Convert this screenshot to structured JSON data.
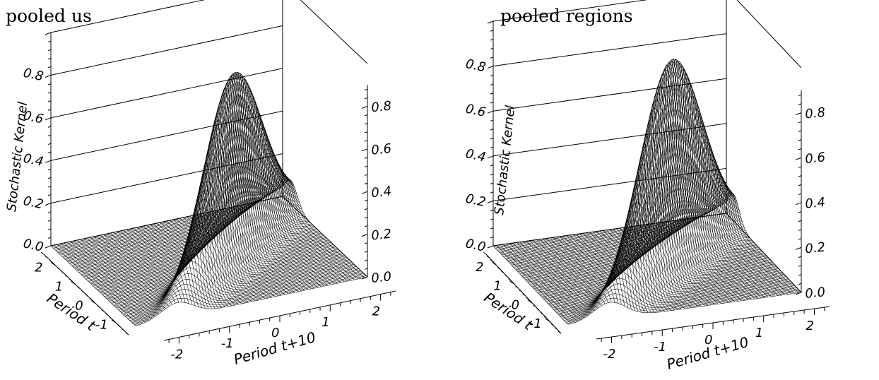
{
  "chart_data": [
    {
      "type": "surface",
      "title": "pooled us",
      "zlabel": "Stochastic Kernel",
      "xlabel": "Period t+10",
      "ylabel": "Period t",
      "x_ticks": [
        "-2",
        "-1",
        "0",
        "1",
        "2"
      ],
      "y_ticks": [
        "-1",
        "0",
        "1",
        "2"
      ],
      "z_ticks_left": [
        "0.0",
        "0.2",
        "0.4",
        "0.6",
        "0.8"
      ],
      "z_ticks_right": [
        "0.0",
        "0.2",
        "0.4",
        "0.6",
        "0.8"
      ],
      "xlim": [
        -2.3,
        2.3
      ],
      "ylim": [
        -1.6,
        2.6
      ],
      "zlim": [
        0,
        1.0
      ],
      "peak_height": 0.86,
      "ridge": "x = y"
    },
    {
      "type": "surface",
      "title": "pooled regions",
      "zlabel": "Stochastic Kernel",
      "xlabel": "Period t+10",
      "ylabel": "Period t",
      "x_ticks": [
        "-2",
        "-1",
        "0",
        "1",
        "2"
      ],
      "y_ticks": [
        "-1",
        "0",
        "1",
        "2"
      ],
      "z_ticks_left": [
        "0.0",
        "0.2",
        "0.4",
        "0.6",
        "0.8"
      ],
      "z_ticks_right": [
        "0.0",
        "0.2",
        "0.4",
        "0.6",
        "0.8"
      ],
      "xlim": [
        -2.3,
        2.3
      ],
      "ylim": [
        -1.6,
        2.6
      ],
      "zlim": [
        0,
        1.0
      ],
      "peak_height": 0.92,
      "ridge": "x = y"
    }
  ]
}
